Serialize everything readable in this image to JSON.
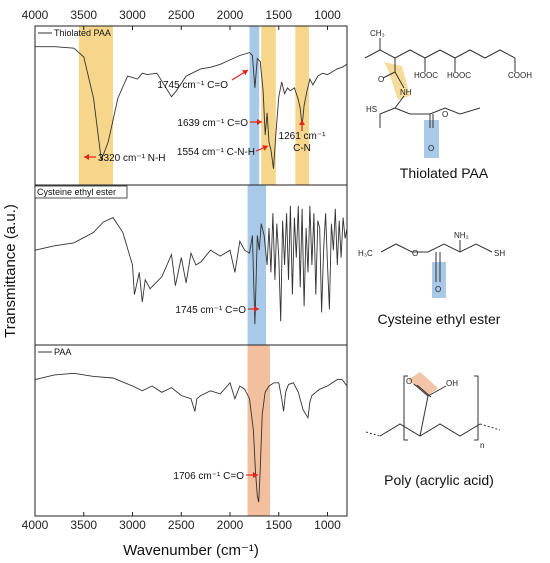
{
  "chart_data": [
    {
      "type": "line",
      "panel": "top",
      "series": [
        {
          "name": "Thiolated PAA"
        }
      ],
      "x": [
        4000,
        3800,
        3600,
        3500,
        3400,
        3320,
        3250,
        3150,
        3050,
        2950,
        2900,
        2850,
        2750,
        2600,
        2550,
        2450,
        2300,
        2200,
        2100,
        2000,
        1900,
        1800,
        1770,
        1745,
        1720,
        1690,
        1660,
        1639,
        1620,
        1600,
        1580,
        1554,
        1530,
        1500,
        1470,
        1440,
        1410,
        1380,
        1340,
        1300,
        1280,
        1261,
        1240,
        1210,
        1180,
        1150,
        1100,
        1050,
        1000,
        950,
        900,
        850,
        800
      ],
      "y": [
        0.9,
        0.9,
        0.89,
        0.83,
        0.55,
        0.13,
        0.25,
        0.55,
        0.7,
        0.68,
        0.72,
        0.71,
        0.72,
        0.56,
        0.6,
        0.7,
        0.75,
        0.76,
        0.78,
        0.81,
        0.84,
        0.86,
        0.84,
        0.62,
        0.82,
        0.8,
        0.6,
        0.3,
        0.45,
        0.25,
        0.2,
        0.07,
        0.3,
        0.56,
        0.66,
        0.58,
        0.62,
        0.6,
        0.62,
        0.54,
        0.48,
        0.36,
        0.5,
        0.6,
        0.68,
        0.64,
        0.7,
        0.72,
        0.71,
        0.73,
        0.75,
        0.76,
        0.78
      ],
      "highlights": [
        {
          "from": 3550,
          "to": 3200,
          "color": "#f5d68a"
        },
        {
          "from": 1800,
          "to": 1700,
          "color": "#a9c9e8"
        },
        {
          "from": 1680,
          "to": 1530,
          "color": "#f5d68a"
        },
        {
          "from": 1330,
          "to": 1190,
          "color": "#f5d68a"
        }
      ],
      "annotations": [
        {
          "label": "3320 cm⁻¹ N-H",
          "x": 3320,
          "y": 0.13
        },
        {
          "label": "1745 cm⁻¹ C=O",
          "x": 1745,
          "y": 0.62
        },
        {
          "label": "1639 cm⁻¹ C=O",
          "x": 1639,
          "y": 0.3
        },
        {
          "label": "1554 cm⁻¹ C-N-H",
          "x": 1554,
          "y": 0.07
        },
        {
          "label": "1261 cm⁻¹",
          "label2": "C-N",
          "x": 1261,
          "y": 0.36
        }
      ]
    },
    {
      "type": "line",
      "panel": "middle",
      "series": [
        {
          "name": "Cysteine ethyl ester"
        }
      ],
      "x": [
        4000,
        3800,
        3600,
        3400,
        3300,
        3200,
        3100,
        3000,
        2980,
        2930,
        2900,
        2870,
        2820,
        2700,
        2600,
        2560,
        2500,
        2450,
        2400,
        2350,
        2300,
        2200,
        2100,
        2000,
        1950,
        1900,
        1850,
        1800,
        1770,
        1745,
        1720,
        1700,
        1680,
        1650,
        1620,
        1600,
        1580,
        1560,
        1540,
        1520,
        1500,
        1480,
        1460,
        1440,
        1420,
        1400,
        1380,
        1360,
        1340,
        1320,
        1300,
        1280,
        1260,
        1240,
        1220,
        1200,
        1180,
        1160,
        1140,
        1120,
        1100,
        1080,
        1060,
        1040,
        1020,
        1000,
        980,
        960,
        940,
        920,
        900,
        880,
        860,
        840,
        820,
        800
      ],
      "y": [
        0.6,
        0.63,
        0.65,
        0.72,
        0.79,
        0.82,
        0.72,
        0.5,
        0.3,
        0.45,
        0.25,
        0.4,
        0.34,
        0.42,
        0.57,
        0.36,
        0.55,
        0.38,
        0.58,
        0.5,
        0.52,
        0.6,
        0.56,
        0.6,
        0.45,
        0.66,
        0.6,
        0.58,
        0.7,
        0.1,
        0.7,
        0.6,
        0.78,
        0.7,
        0.5,
        0.75,
        0.45,
        0.85,
        0.4,
        0.78,
        0.55,
        0.12,
        0.8,
        0.5,
        0.85,
        0.4,
        0.9,
        0.3,
        0.82,
        0.55,
        0.9,
        0.35,
        0.88,
        0.22,
        0.75,
        0.45,
        0.9,
        0.5,
        0.85,
        0.3,
        0.8,
        0.75,
        0.18,
        0.6,
        0.85,
        0.5,
        0.2,
        0.78,
        0.6,
        0.88,
        0.5,
        0.8,
        0.55,
        0.82,
        0.68,
        0.75
      ],
      "highlights": [
        {
          "from": 1820,
          "to": 1630,
          "color": "#a9c9e8"
        }
      ],
      "annotations": [
        {
          "label": "1745 cm⁻¹ C=O",
          "x": 1745,
          "y": 0.1
        }
      ]
    },
    {
      "type": "line",
      "panel": "bottom",
      "series": [
        {
          "name": "PAA"
        }
      ],
      "x": [
        4000,
        3800,
        3600,
        3400,
        3200,
        3000,
        2900,
        2800,
        2700,
        2600,
        2500,
        2400,
        2360,
        2340,
        2300,
        2200,
        2100,
        2000,
        1950,
        1900,
        1850,
        1800,
        1760,
        1740,
        1720,
        1706,
        1690,
        1670,
        1640,
        1600,
        1550,
        1500,
        1470,
        1450,
        1430,
        1400,
        1350,
        1300,
        1250,
        1200,
        1180,
        1160,
        1120,
        1080,
        1000,
        950,
        900,
        850,
        800
      ],
      "y": [
        0.82,
        0.85,
        0.86,
        0.84,
        0.83,
        0.78,
        0.75,
        0.78,
        0.74,
        0.77,
        0.72,
        0.7,
        0.62,
        0.7,
        0.72,
        0.75,
        0.73,
        0.8,
        0.7,
        0.78,
        0.76,
        0.7,
        0.5,
        0.25,
        0.09,
        0.05,
        0.25,
        0.6,
        0.74,
        0.78,
        0.8,
        0.8,
        0.7,
        0.62,
        0.74,
        0.79,
        0.8,
        0.74,
        0.63,
        0.58,
        0.68,
        0.72,
        0.74,
        0.76,
        0.78,
        0.8,
        0.82,
        0.82,
        0.78
      ],
      "highlights": [
        {
          "from": 1820,
          "to": 1590,
          "color": "#f2bf9f"
        }
      ],
      "annotations": [
        {
          "label": "1706 cm⁻¹ C=O",
          "x": 1706,
          "y": 0.05
        }
      ]
    }
  ],
  "axes": {
    "xlabel": "Wavenumber (cm⁻¹)",
    "ylabel": "Transmittance (a.u.)",
    "xlim": [
      4000,
      800
    ],
    "xticks": [
      "4000",
      "3500",
      "3000",
      "2500",
      "2000",
      "1500",
      "1000"
    ],
    "xtick_values": [
      4000,
      3500,
      3000,
      2500,
      2000,
      1500,
      1000
    ],
    "reversed_x": true
  },
  "molecules": {
    "thiolated_paa": {
      "name": "Thiolated PAA",
      "labels": [
        "CH₃",
        "HOOC",
        "HOOC",
        "COOH",
        "O",
        "NH",
        "HS",
        "O",
        "O"
      ]
    },
    "cysteine": {
      "name": "Cysteine ethyl ester",
      "labels": [
        "NH₂",
        "H₃C",
        "O",
        "SH",
        "O"
      ]
    },
    "paa": {
      "name": "Poly (acrylic acid)",
      "labels": [
        "O",
        "OH",
        "n"
      ]
    }
  },
  "colors": {
    "line": "#333333",
    "arrow": "#e2231a",
    "yellow": "#f5d68a",
    "blue": "#a9c9e8",
    "orange": "#f2bf9f"
  }
}
